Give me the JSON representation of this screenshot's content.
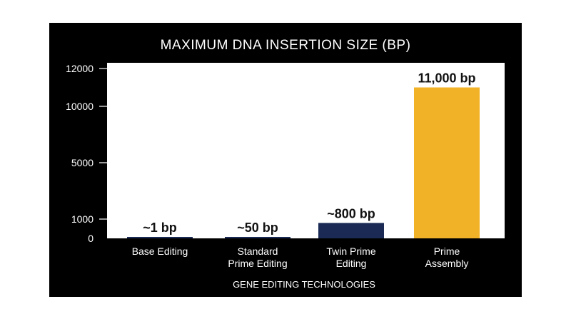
{
  "chart_data": {
    "type": "bar",
    "title": "MAXIMUM DNA INSERTION SIZE (BP)",
    "xlabel": "GENE EDITING TECHNOLOGIES",
    "ylabel": "",
    "categories": [
      [
        "Base Editing"
      ],
      [
        "Standard",
        "Prime Editing"
      ],
      [
        "Twin Prime",
        "Editing"
      ],
      [
        "Prime",
        "Assembly"
      ]
    ],
    "values": [
      1,
      50,
      800,
      11000
    ],
    "data_labels": [
      "~1 bp",
      "~50 bp",
      "~800 bp",
      "11,000 bp"
    ],
    "bar_colors": [
      "#1b2a55",
      "#1b2a55",
      "#1b2a55",
      "#f2b227"
    ],
    "yticks": [
      {
        "value": 0,
        "label": "0"
      },
      {
        "value": 1000,
        "label": "1000"
      },
      {
        "value": 5000,
        "label": "5000"
      },
      {
        "value": 10000,
        "label": "10000"
      },
      {
        "value": 12000,
        "label": "12000"
      }
    ],
    "ylim": [
      0,
      12000
    ],
    "grid": false,
    "legend": "none",
    "colors": {
      "frame": "#000000",
      "plot_background": "#ffffff",
      "text_on_dark": "#ffffff",
      "data_label": "#111111"
    }
  }
}
